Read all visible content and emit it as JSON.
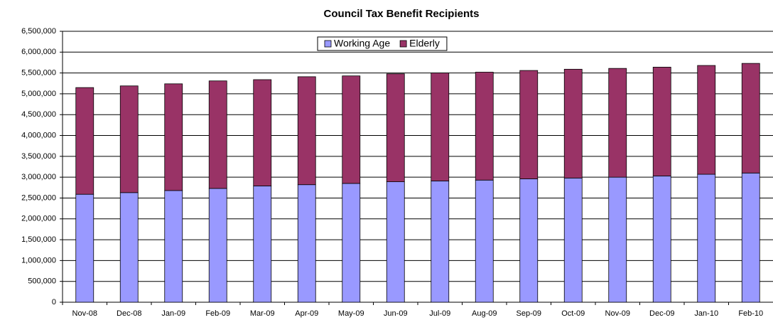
{
  "chart_data": {
    "type": "stacked_bar",
    "title": "Council Tax Benefit Recipients",
    "categories": [
      "Nov-08",
      "Dec-08",
      "Jan-09",
      "Feb-09",
      "Mar-09",
      "Apr-09",
      "May-09",
      "Jun-09",
      "Jul-09",
      "Aug-09",
      "Sep-09",
      "Oct-09",
      "Nov-09",
      "Dec-09",
      "Jan-10",
      "Feb-10"
    ],
    "series": [
      {
        "name": "Working Age",
        "color": "#9999ff",
        "values": [
          2590000,
          2630000,
          2680000,
          2730000,
          2790000,
          2820000,
          2850000,
          2890000,
          2910000,
          2930000,
          2960000,
          2980000,
          3000000,
          3030000,
          3070000,
          3100000
        ]
      },
      {
        "name": "Elderly",
        "color": "#993366",
        "values": [
          2560000,
          2560000,
          2560000,
          2580000,
          2550000,
          2590000,
          2580000,
          2590000,
          2590000,
          2590000,
          2600000,
          2610000,
          2610000,
          2610000,
          2610000,
          2630000
        ]
      }
    ],
    "ylim": [
      0,
      6500000
    ],
    "yticks": [
      0,
      {
        "value": 500000,
        "label": "500,000"
      },
      {
        "value": 1000000,
        "label": "1,000,000"
      },
      {
        "value": 1500000,
        "label": "1,500,000"
      },
      {
        "value": 2000000,
        "label": "2,000,000"
      },
      {
        "value": 2500000,
        "label": "2,500,000"
      },
      {
        "value": 3000000,
        "label": "3,000,000"
      },
      {
        "value": 3500000,
        "label": "3,500,000"
      },
      {
        "value": 4000000,
        "label": "4,000,000"
      },
      {
        "value": 4500000,
        "label": "4,500,000"
      },
      {
        "value": 5000000,
        "label": "5,000,000"
      },
      {
        "value": 5500000,
        "label": "5,500,000"
      },
      {
        "value": 6000000,
        "label": "6,000,000"
      },
      {
        "value": 6500000,
        "label": "6,500,000"
      }
    ],
    "grid": true,
    "legend": "top"
  }
}
